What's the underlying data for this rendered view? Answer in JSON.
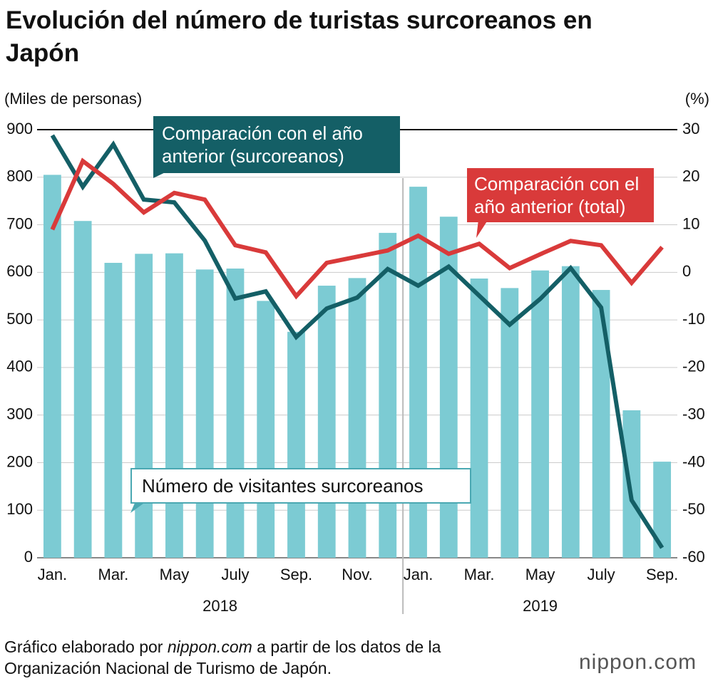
{
  "chart_data": {
    "type": "bar",
    "title": "Evolución del número de turistas surcoreanos en Japón",
    "y_label": "(Miles de personas)",
    "y2_label": "(%)",
    "categories": [
      "Jan.",
      null,
      "Mar.",
      null,
      "May",
      null,
      "July",
      null,
      "Sep.",
      null,
      "Nov.",
      null,
      "Jan.",
      null,
      "Mar.",
      null,
      "May",
      null,
      "July",
      null,
      "Sep."
    ],
    "year_labels": [
      "2018",
      "2019"
    ],
    "series": [
      {
        "name": "Número de visitantes surcoreanos",
        "type": "bar",
        "color": "#7ccbd3",
        "values": [
          805,
          708,
          620,
          639,
          640,
          606,
          608,
          540,
          475,
          572,
          588,
          683,
          780,
          717,
          587,
          567,
          604,
          613,
          563,
          310,
          202
        ]
      },
      {
        "name": "Comparación con el año anterior (surcoreanos)",
        "type": "line",
        "axis": "y2",
        "color": "#145f66",
        "values": [
          28.8,
          18,
          26.9,
          15.3,
          14.7,
          6.7,
          -5.5,
          -4,
          -13.6,
          -7.6,
          -5.3,
          0.7,
          -2.8,
          1.2,
          -4.9,
          -11,
          -5.6,
          0.9,
          -7.4,
          -47.9,
          -57.9
        ]
      },
      {
        "name": "Comparación con el año anterior (total)",
        "type": "line",
        "axis": "y2",
        "color": "#d93a3a",
        "values": [
          9.0,
          23.4,
          18.6,
          12.6,
          16.7,
          15.3,
          5.7,
          4.2,
          -5.0,
          2.0,
          3.3,
          4.6,
          7.7,
          3.9,
          6.0,
          0.9,
          3.8,
          6.6,
          5.7,
          -2.2,
          5.3
        ]
      }
    ],
    "ylim": [
      0,
      900
    ],
    "yticks": [
      0,
      100,
      200,
      300,
      400,
      500,
      600,
      700,
      800,
      900
    ],
    "y2lim": [
      -60,
      30
    ],
    "y2ticks": [
      -60,
      -50,
      -40,
      -30,
      -20,
      -10,
      0,
      10,
      20,
      30
    ],
    "grid": true,
    "source": [
      "Gráfico elaborado por ",
      "nippon.com",
      " a partir de los datos de la Organización Nacional de Turismo de Japón."
    ],
    "brand": "nippon.com"
  }
}
